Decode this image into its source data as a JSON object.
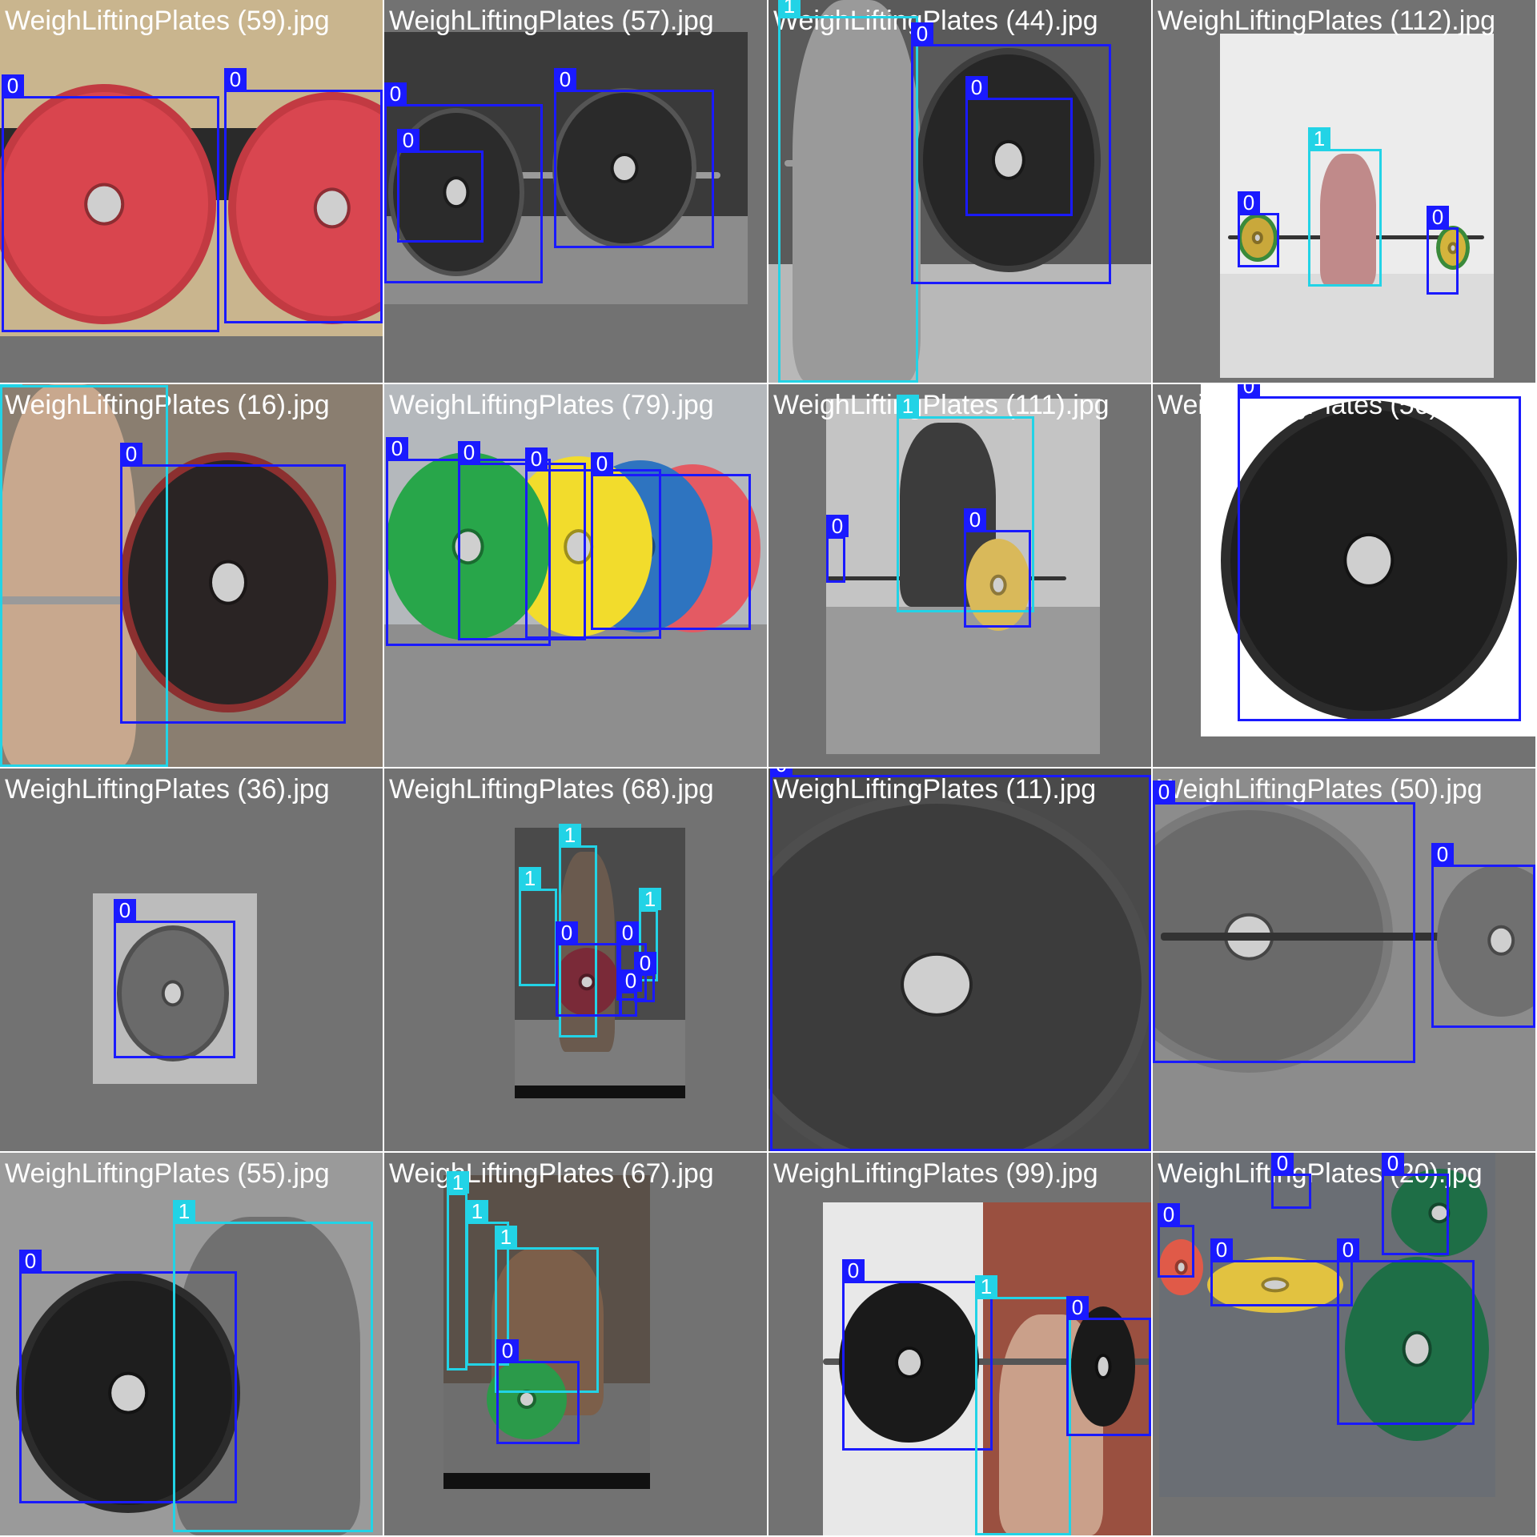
{
  "colors": {
    "class_0": "#1a1aff",
    "class_1": "#22d3e6",
    "tile_background": "#727272"
  },
  "tiles": [
    {
      "filename": "WeighLiftingPlates (59).jpg",
      "labels": [
        "0",
        "0"
      ]
    },
    {
      "filename": "WeighLiftingPlates (57).jpg",
      "labels": [
        "0",
        "0",
        "0"
      ]
    },
    {
      "filename": "WeighLiftingPlates (44).jpg",
      "labels": [
        "1",
        "0",
        "0"
      ]
    },
    {
      "filename": "WeighLiftingPlates (112).jpg",
      "labels": [
        "0",
        "1",
        "0"
      ]
    },
    {
      "filename": "WeighLiftingPlates (16).jpg",
      "labels": [
        "1",
        "0"
      ]
    },
    {
      "filename": "WeighLiftingPlates (79).jpg",
      "labels": [
        "0",
        "0",
        "0",
        "0"
      ]
    },
    {
      "filename": "WeighLiftingPlates (111).jpg",
      "labels": [
        "1",
        "0",
        "0"
      ]
    },
    {
      "filename": "WeighLiftingPlates (56).jpg",
      "labels": [
        "0"
      ]
    },
    {
      "filename": "WeighLiftingPlates (36).jpg",
      "labels": [
        "0"
      ]
    },
    {
      "filename": "WeighLiftingPlates (68).jpg",
      "labels": [
        "1",
        "1",
        "1",
        "0",
        "0",
        "0",
        "0"
      ]
    },
    {
      "filename": "WeighLiftingPlates (11).jpg",
      "labels": [
        "0"
      ]
    },
    {
      "filename": "WeighLiftingPlates (50).jpg",
      "labels": [
        "0",
        "0"
      ]
    },
    {
      "filename": "WeighLiftingPlates (55).jpg",
      "labels": [
        "0",
        "1"
      ]
    },
    {
      "filename": "WeighLiftingPlates (67).jpg",
      "labels": [
        "1",
        "1",
        "1",
        "0"
      ]
    },
    {
      "filename": "WeighLiftingPlates (99).jpg",
      "labels": [
        "0",
        "1",
        "0"
      ]
    },
    {
      "filename": "WeighLiftingPlates (20).jpg",
      "labels": [
        "0",
        "0",
        "0",
        "0",
        "0"
      ]
    }
  ]
}
